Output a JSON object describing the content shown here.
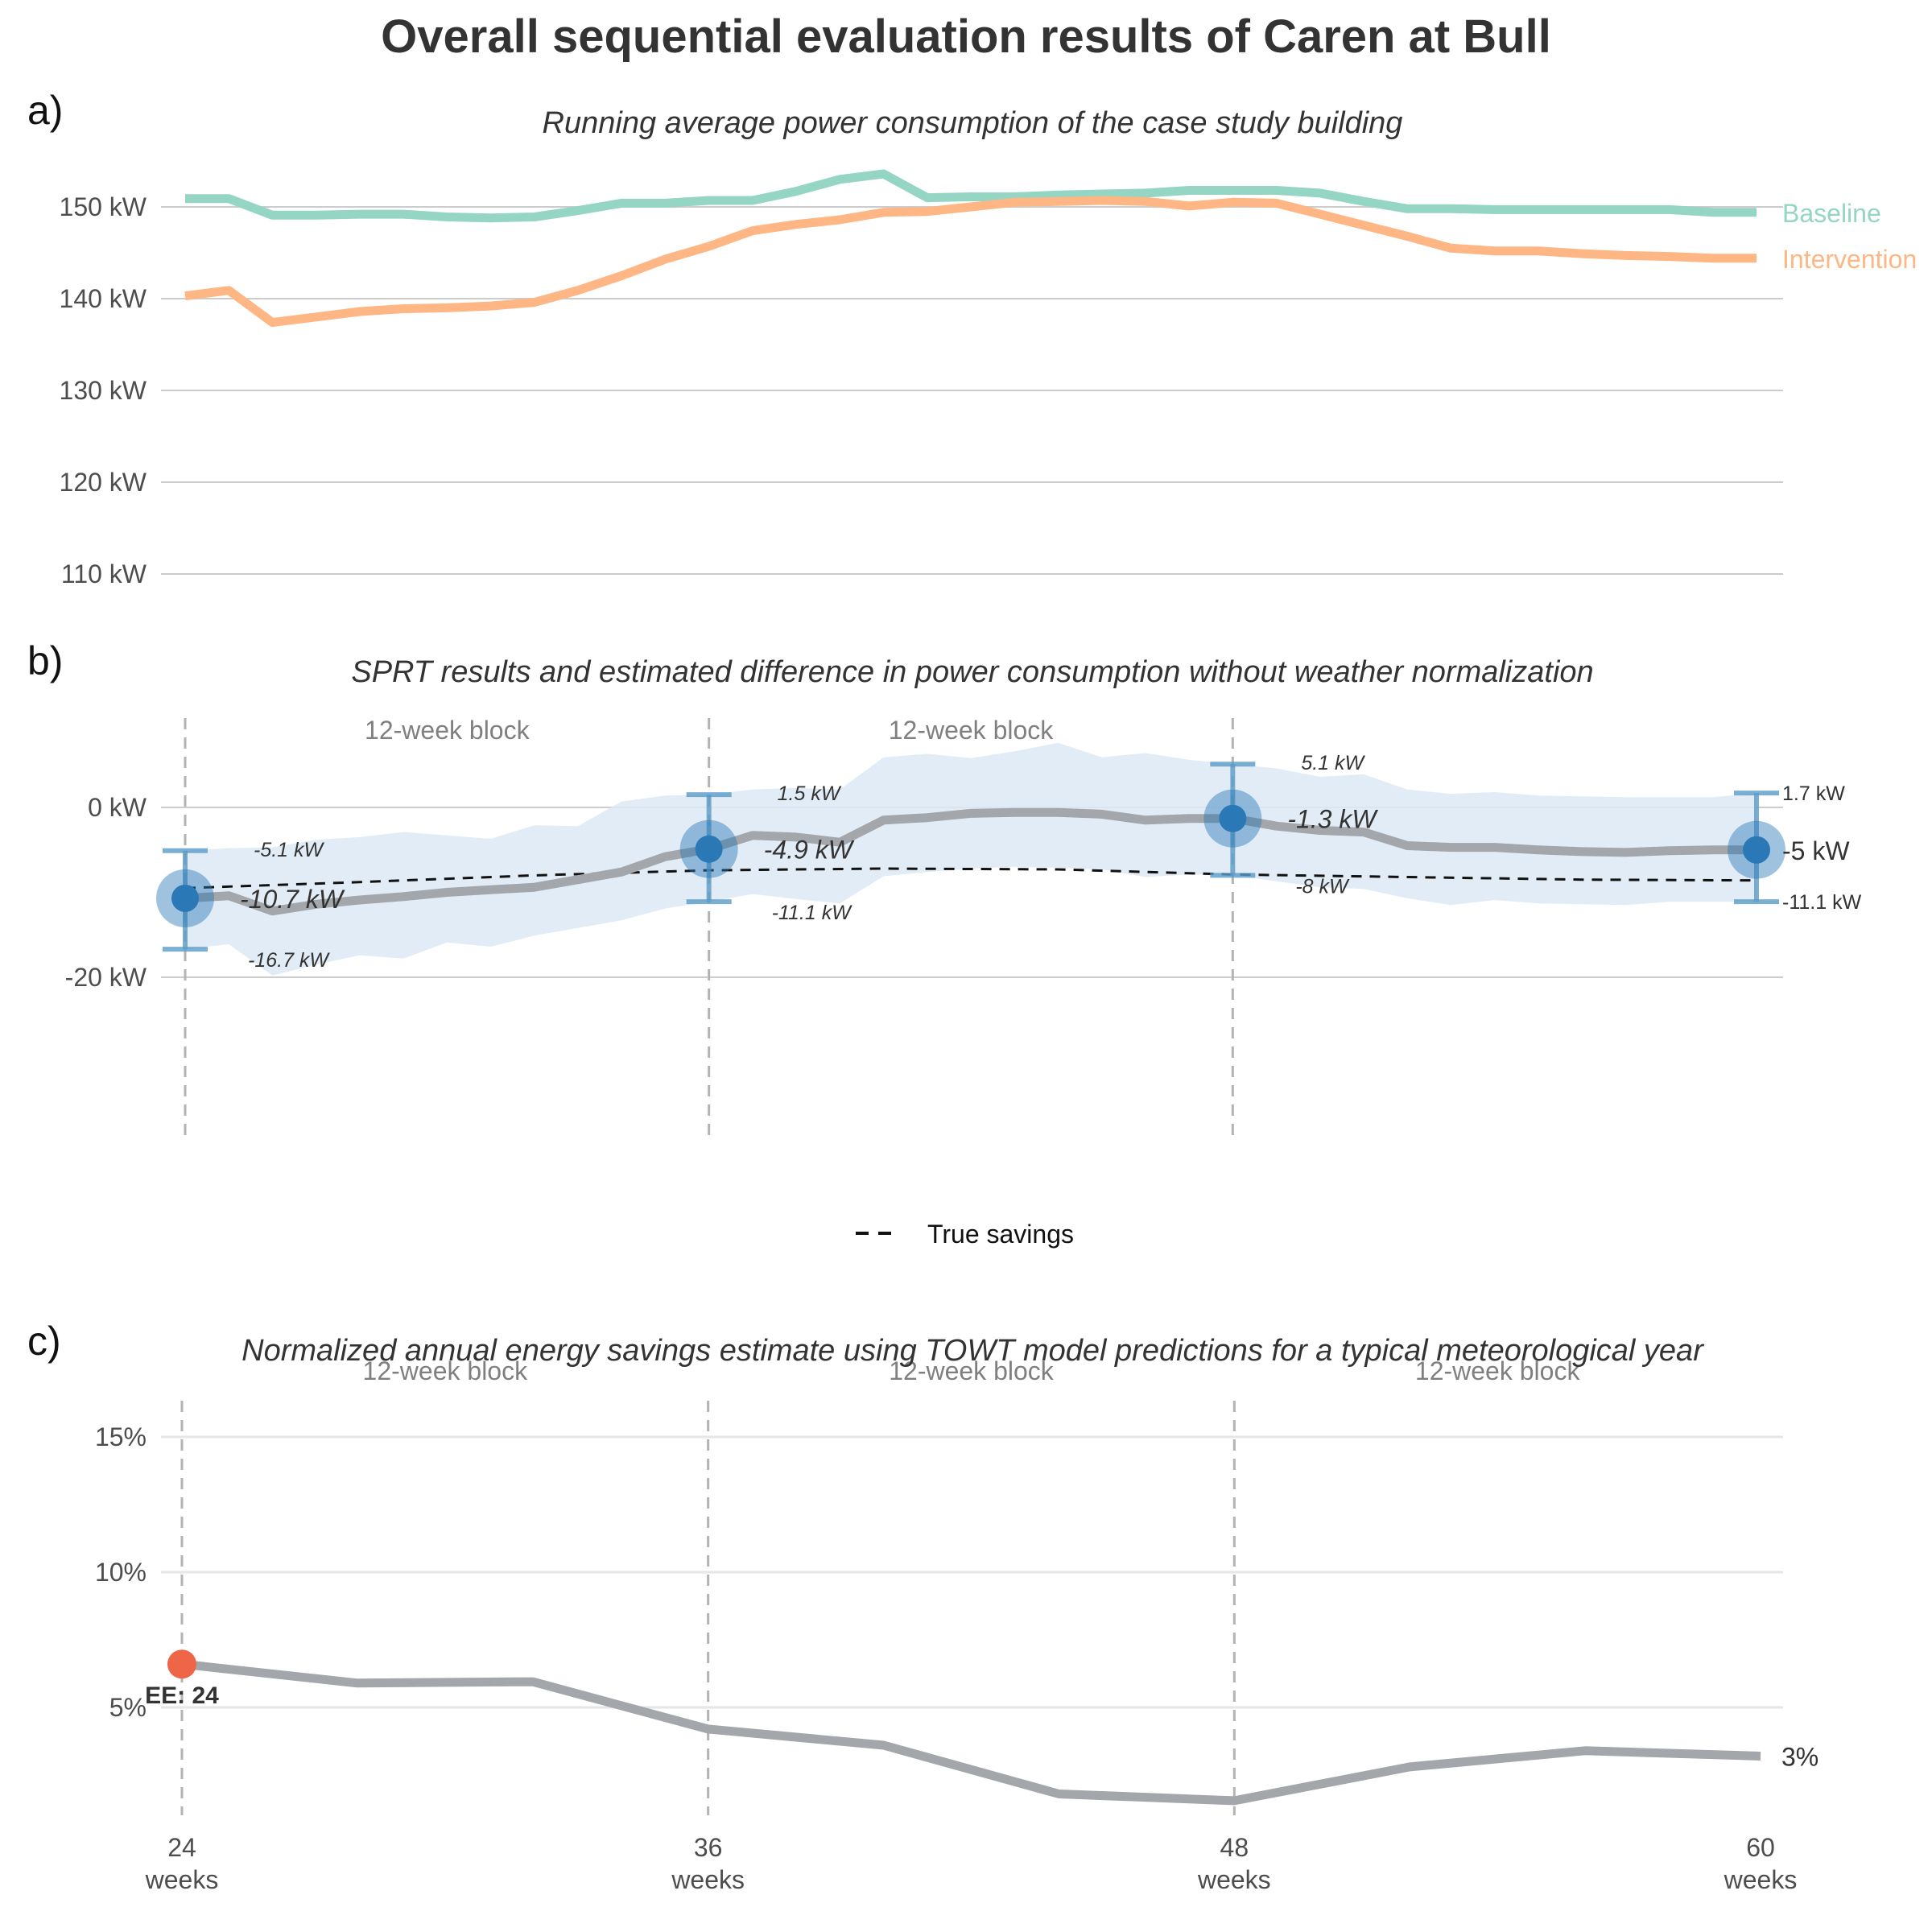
{
  "title": "Overall sequential evaluation results of Caren at Bull",
  "colors": {
    "baseline": "#95d5c4",
    "intervention": "#fdb684",
    "estimate": "#a3a6aa",
    "ci_band": "#dde9f5",
    "point": "#2a78b5",
    "error_bar": "#5b9cc8",
    "ee_point": "#ef6548",
    "text": "#333333",
    "muted": "#7f7f7f",
    "grid": "#cccccc"
  },
  "chart_data": [
    {
      "panel": "a)",
      "type": "line",
      "subtitle": "Running average power consumption of the case study building",
      "y_ticks": [
        "110 kW",
        "120 kW",
        "130 kW",
        "140 kW",
        "150 kW"
      ],
      "y_tick_values": [
        110,
        120,
        130,
        140,
        150
      ],
      "ylim": [
        108,
        156
      ],
      "xlim": [
        24,
        60
      ],
      "grid": "horizontal",
      "legend": "direct labels at right",
      "series": [
        {
          "name": "Baseline",
          "x": [
            24,
            25,
            26,
            27,
            28,
            29,
            30,
            31,
            32,
            33,
            34,
            35,
            36,
            37,
            38,
            39,
            40,
            41,
            42,
            43,
            44,
            45,
            46,
            47,
            48,
            49,
            50,
            51,
            52,
            53,
            54,
            55,
            56,
            57,
            58,
            59,
            60
          ],
          "values": [
            150.9,
            150.9,
            149.1,
            149.1,
            149.2,
            149.2,
            148.9,
            148.8,
            148.9,
            149.6,
            150.4,
            150.4,
            150.7,
            150.7,
            151.7,
            153.0,
            153.6,
            151.0,
            151.1,
            151.1,
            151.3,
            151.4,
            151.5,
            151.8,
            151.8,
            151.8,
            151.5,
            150.6,
            149.8,
            149.8,
            149.7,
            149.7,
            149.7,
            149.7,
            149.7,
            149.4,
            149.4
          ]
        },
        {
          "name": "Intervention",
          "x": [
            24,
            25,
            26,
            27,
            28,
            29,
            30,
            31,
            32,
            33,
            34,
            35,
            36,
            37,
            38,
            39,
            40,
            41,
            42,
            43,
            44,
            45,
            46,
            47,
            48,
            49,
            50,
            51,
            52,
            53,
            54,
            55,
            56,
            57,
            58,
            59,
            60
          ],
          "values": [
            140.3,
            140.9,
            137.4,
            138.0,
            138.6,
            138.9,
            139.0,
            139.2,
            139.6,
            140.9,
            142.5,
            144.3,
            145.7,
            147.4,
            148.1,
            148.6,
            149.4,
            149.5,
            150.0,
            150.5,
            150.6,
            150.7,
            150.6,
            150.1,
            150.5,
            150.4,
            149.2,
            148.0,
            146.8,
            145.5,
            145.2,
            145.2,
            144.9,
            144.7,
            144.6,
            144.4,
            144.4
          ]
        }
      ]
    },
    {
      "panel": "b)",
      "type": "line",
      "subtitle": "SPRT results and estimated difference in power consumption without weather normalization",
      "y_ticks": [
        "-20 kW",
        "0 kW"
      ],
      "y_tick_values": [
        -20,
        0
      ],
      "ylim": [
        -40,
        12
      ],
      "xlim": [
        24,
        60
      ],
      "grid": "horizontal",
      "block_labels": [
        "12-week block",
        "12-week block"
      ],
      "legend": "bottom-center",
      "legend_label": "True savings",
      "true_savings": {
        "x": [
          24,
          28,
          32,
          36,
          40,
          44,
          48,
          52,
          56,
          60
        ],
        "values": [
          -9.5,
          -8.8,
          -8.0,
          -7.4,
          -7.2,
          -7.3,
          -7.9,
          -8.2,
          -8.5,
          -8.6
        ]
      },
      "estimate": {
        "x": [
          24,
          25,
          26,
          27,
          28,
          29,
          30,
          31,
          32,
          33,
          34,
          35,
          36,
          37,
          38,
          39,
          40,
          41,
          42,
          43,
          44,
          45,
          46,
          47,
          48,
          49,
          50,
          51,
          52,
          53,
          54,
          55,
          56,
          57,
          58,
          59,
          60
        ],
        "values": [
          -10.7,
          -10.4,
          -12.2,
          -11.4,
          -10.9,
          -10.5,
          -10.0,
          -9.7,
          -9.4,
          -8.5,
          -7.6,
          -5.8,
          -4.9,
          -3.3,
          -3.5,
          -4.1,
          -1.5,
          -1.2,
          -0.7,
          -0.6,
          -0.6,
          -0.8,
          -1.5,
          -1.3,
          -1.3,
          -2.2,
          -2.7,
          -2.9,
          -4.5,
          -4.7,
          -4.7,
          -5.0,
          -5.2,
          -5.3,
          -5.1,
          -5.0,
          -5.0
        ],
        "ci_lower": [
          -16.7,
          -16.1,
          -19.8,
          -18.5,
          -17.4,
          -17.8,
          -15.9,
          -16.4,
          -15.1,
          -14.2,
          -13.3,
          -11.9,
          -11.1,
          -10.2,
          -10.8,
          -11.3,
          -8.1,
          -7.6,
          -7.2,
          -7.0,
          -7.1,
          -7.3,
          -8.2,
          -7.9,
          -8.0,
          -8.7,
          -9.4,
          -9.6,
          -10.7,
          -11.5,
          -10.9,
          -11.3,
          -11.4,
          -11.5,
          -11.1,
          -11.1,
          -11.1
        ],
        "ci_upper": [
          -5.1,
          -4.8,
          -4.7,
          -3.8,
          -3.5,
          -2.9,
          -3.3,
          -3.7,
          -2.1,
          -2.2,
          0.7,
          1.4,
          1.5,
          2.1,
          2.3,
          2.1,
          5.9,
          6.3,
          5.8,
          6.6,
          7.6,
          5.9,
          6.4,
          5.6,
          5.1,
          4.6,
          3.6,
          3.9,
          2.1,
          1.6,
          1.8,
          1.4,
          1.3,
          1.2,
          1.2,
          1.2,
          1.7
        ]
      },
      "sprt_points": [
        {
          "x": 24,
          "estimate": -10.7,
          "upper": -5.1,
          "lower": -16.7,
          "estimate_label": "-10.7 kW",
          "upper_label": "-5.1 kW",
          "lower_label": "-16.7 kW"
        },
        {
          "x": 36,
          "estimate": -4.9,
          "upper": 1.5,
          "lower": -11.1,
          "estimate_label": "-4.9 kW",
          "upper_label": "1.5 kW",
          "lower_label": "-11.1 kW"
        },
        {
          "x": 48,
          "estimate": -1.3,
          "upper": 5.1,
          "lower": -8.0,
          "estimate_label": "-1.3 kW",
          "upper_label": "5.1 kW",
          "lower_label": "-8 kW"
        },
        {
          "x": 60,
          "estimate": -5.0,
          "upper": 1.7,
          "lower": -11.1,
          "estimate_label": "-5 kW",
          "upper_label": "1.7 kW",
          "lower_label": "-11.1 kW"
        }
      ]
    },
    {
      "panel": "c)",
      "type": "line",
      "subtitle": "Normalized annual energy savings estimate using TOWT model predictions for a typical meteorological year",
      "y_ticks": [
        "5%",
        "10%",
        "15%"
      ],
      "y_tick_values": [
        5,
        10,
        15
      ],
      "ylim": [
        0.5,
        17
      ],
      "xlim": [
        24,
        60
      ],
      "grid": "horizontal",
      "block_labels": [
        "12-week block",
        "12-week block",
        "12-week block"
      ],
      "x_ticks": [
        {
          "value": 24,
          "line1": "24",
          "line2": "weeks"
        },
        {
          "value": 36,
          "line1": "36",
          "line2": "weeks"
        },
        {
          "value": 48,
          "line1": "48",
          "line2": "weeks"
        },
        {
          "value": 60,
          "line1": "60",
          "line2": "weeks"
        }
      ],
      "series": [
        {
          "x": [
            24,
            28,
            32,
            36,
            40,
            44,
            48,
            52,
            56,
            60
          ],
          "values": [
            6.6,
            5.9,
            5.95,
            4.2,
            3.6,
            1.8,
            1.55,
            2.8,
            3.4,
            3.2
          ]
        }
      ],
      "end_label": "3%",
      "early_end": {
        "x": 24,
        "value": 6.6,
        "label": "EE: 24"
      }
    }
  ]
}
